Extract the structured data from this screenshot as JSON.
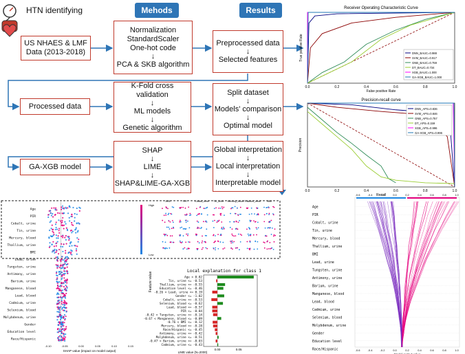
{
  "header": {
    "title": "HTN identifying",
    "methods_label": "Mehods",
    "results_label": "Results"
  },
  "flow": {
    "data_source": [
      "US NHAES & LMF",
      "Data (2013-2018)"
    ],
    "preprocessing": [
      "Normalization",
      "StandardScaler",
      "One-hot code",
      "↓",
      "PCA & SKB algorithm"
    ],
    "preprocessing_results": [
      "Preprocessed data",
      "↓",
      "Selected features"
    ],
    "processed_data": "Processed data",
    "modeling": [
      "K-Fold cross validation",
      "↓",
      "ML models",
      "↓",
      "Genetic algorithm"
    ],
    "modeling_results": [
      "Split dataset",
      "↓",
      "Models' comparison",
      "↓",
      "Optimal model"
    ],
    "final_model": "GA-XGB model",
    "interpretation": [
      "SHAP",
      "↓",
      "LIME",
      "↓",
      "SHAP&LIME-GA-XGB"
    ],
    "interpretation_results": [
      "Global interpretation",
      "↓",
      "Local interpretation",
      "↓",
      "Interpretable model"
    ]
  },
  "roc_chart": {
    "title": "Receiver Operating Characteristic Curve",
    "xlabel": "False positive Rate",
    "ylabel": "True positive Rate",
    "ticks": [
      "0.0",
      "0.2",
      "0.4",
      "0.6",
      "0.8",
      "1.0"
    ],
    "legend": [
      "DNN_BAUC=0.988",
      "SVM_BAUC=0.917",
      "GNB_BAUC=0.759",
      "DT_BAUC=0.734",
      "XGB_BAUC=1.000",
      "GA-XGB_BAUC=1.000"
    ]
  },
  "pr_chart": {
    "title": "Precision-recall curve",
    "xlabel": "Recall",
    "ylabel": "Precision",
    "ticks": [
      "0.0",
      "0.2",
      "0.4",
      "0.6",
      "0.8",
      "1.0"
    ],
    "legend": [
      "DNN_APS=0.836",
      "SVM_APS=0.846",
      "GNB_APS=0.757",
      "DT_APS=0.159",
      "XGB_APS=0.996",
      "GA-XGB_APS=0.996"
    ]
  },
  "shap_summary": {
    "features": [
      "Age",
      "PIR",
      "Cobalt, urine",
      "Tin, urine",
      "Mercury, blood",
      "Thallium, urine",
      "BMI",
      "Lead, urine",
      "Tungsten, urine",
      "Antimony, urine",
      "Barium, urine",
      "Manganese, blood",
      "Lead, blood",
      "Cadmium, urine",
      "Selenium, blood",
      "Molybdenum, urine",
      "Gender",
      "Education level",
      "Race/Hispanic"
    ],
    "xlabel": "SHAP value (impact on model output)",
    "colorbar_label": "Feature value",
    "colorbar_high": "High",
    "colorbar_low": "Low"
  },
  "dependence_panel": {
    "columns": [
      "AGE",
      "PIR",
      "Cobalt_urine",
      "Tin_urine",
      "Mercury_blood",
      "Thallium_urine",
      "BMI"
    ]
  },
  "lime_chart": {
    "title": "Local explanation for class 1",
    "xlabel": "LIME value (N=2000)",
    "xticks": [
      "0.00",
      "0.05"
    ],
    "labels": [
      "Age > 0.82",
      "Tin, urine <= -0.53",
      "Thallium, urine <= -0.55",
      "Education level <= -0.46",
      "-0.26 < Lead, urine <= 0.19",
      "Gender <= -1.02",
      "Cobalt, urine <= -0.53",
      "Selenium, blood <= -0.62",
      "Lead, blood <= -0.57",
      "PIR <= -0.84",
      "-0.42 < Tungsten, urine <= -0.14",
      "-0.67 < Manganese, blood <= -0.09",
      "-0.76 < BMI <= -0.12",
      "Mercury, blood <= -0.28",
      "Race/Hispanic <= -0.45",
      "Antimony, urine <= -0.42",
      "Molybdenum, urine <= -0.51",
      "-0.47 < Barium, urine <= -0.03",
      "Cadmium, urine <= -0.43"
    ],
    "values": [
      0.085,
      -0.003,
      0.018,
      0.014,
      -0.012,
      0.016,
      -0.014,
      0.013,
      -0.012,
      -0.012,
      -0.01,
      0.009,
      -0.011,
      -0.01,
      -0.006,
      -0.004,
      0.003,
      -0.004,
      0.002
    ]
  },
  "decision_plot": {
    "features": [
      "Age",
      "PIR",
      "Cobalt, urine",
      "Tin, urine",
      "Mercury, blood",
      "Thallium, urine",
      "BMI",
      "Lead, urine",
      "Tungsten, urine",
      "Antimony, urine",
      "Barium, urine",
      "Manganese, blood",
      "Lead, blood",
      "Cadmium, urine",
      "Selenium, blood",
      "Molybdenum, urine",
      "Gender",
      "Education level",
      "Race/Hispanic"
    ],
    "ticks": [
      "-0.6",
      "-0.4",
      "-0.2",
      "0.0",
      "0.2",
      "0.4",
      "0.6",
      "0.8",
      "1.0"
    ],
    "xlabel": "Model output value"
  },
  "colors": {
    "accent_blue": "#2e75b6",
    "box_border": "#c0392b",
    "positive_bar": "#1e8b1e",
    "negative_bar": "#d62728",
    "shap_pink": "#e5007d",
    "shap_blue": "#1e88e5"
  }
}
